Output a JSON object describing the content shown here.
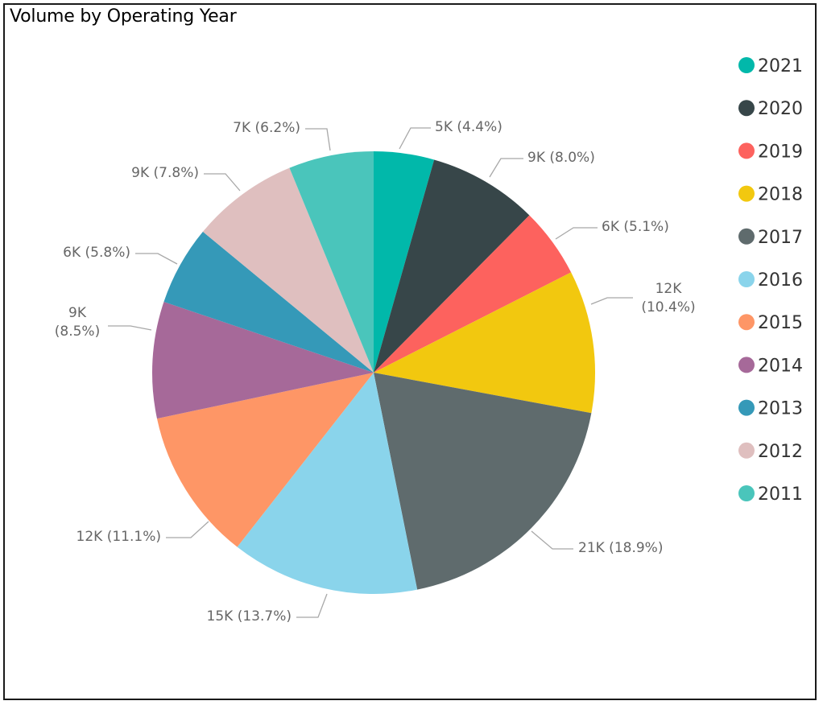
{
  "chart_data": {
    "type": "pie",
    "title": "Volume by Operating Year",
    "start_angle_deg": 0,
    "direction": "clockwise",
    "legend_position": "right",
    "slices": [
      {
        "label": "2021",
        "percent": 4.4,
        "value_label": "5K",
        "color": "#01B8AA"
      },
      {
        "label": "2020",
        "percent": 8.0,
        "value_label": "9K",
        "color": "#374649"
      },
      {
        "label": "2019",
        "percent": 5.1,
        "value_label": "6K",
        "color": "#FD625E"
      },
      {
        "label": "2018",
        "percent": 10.4,
        "value_label": "12K",
        "color": "#F2C80F"
      },
      {
        "label": "2017",
        "percent": 18.9,
        "value_label": "21K",
        "color": "#5F6B6D"
      },
      {
        "label": "2016",
        "percent": 13.7,
        "value_label": "15K",
        "color": "#8AD4EB"
      },
      {
        "label": "2015",
        "percent": 11.1,
        "value_label": "12K",
        "color": "#FE9666"
      },
      {
        "label": "2014",
        "percent": 8.5,
        "value_label": "9K",
        "color": "#A66999"
      },
      {
        "label": "2013",
        "percent": 5.8,
        "value_label": "6K",
        "color": "#3599B8"
      },
      {
        "label": "2012",
        "percent": 7.8,
        "value_label": "9K",
        "color": "#DFBFBF"
      },
      {
        "label": "2011",
        "percent": 6.2,
        "value_label": "7K",
        "color": "#4AC5BB"
      }
    ]
  }
}
